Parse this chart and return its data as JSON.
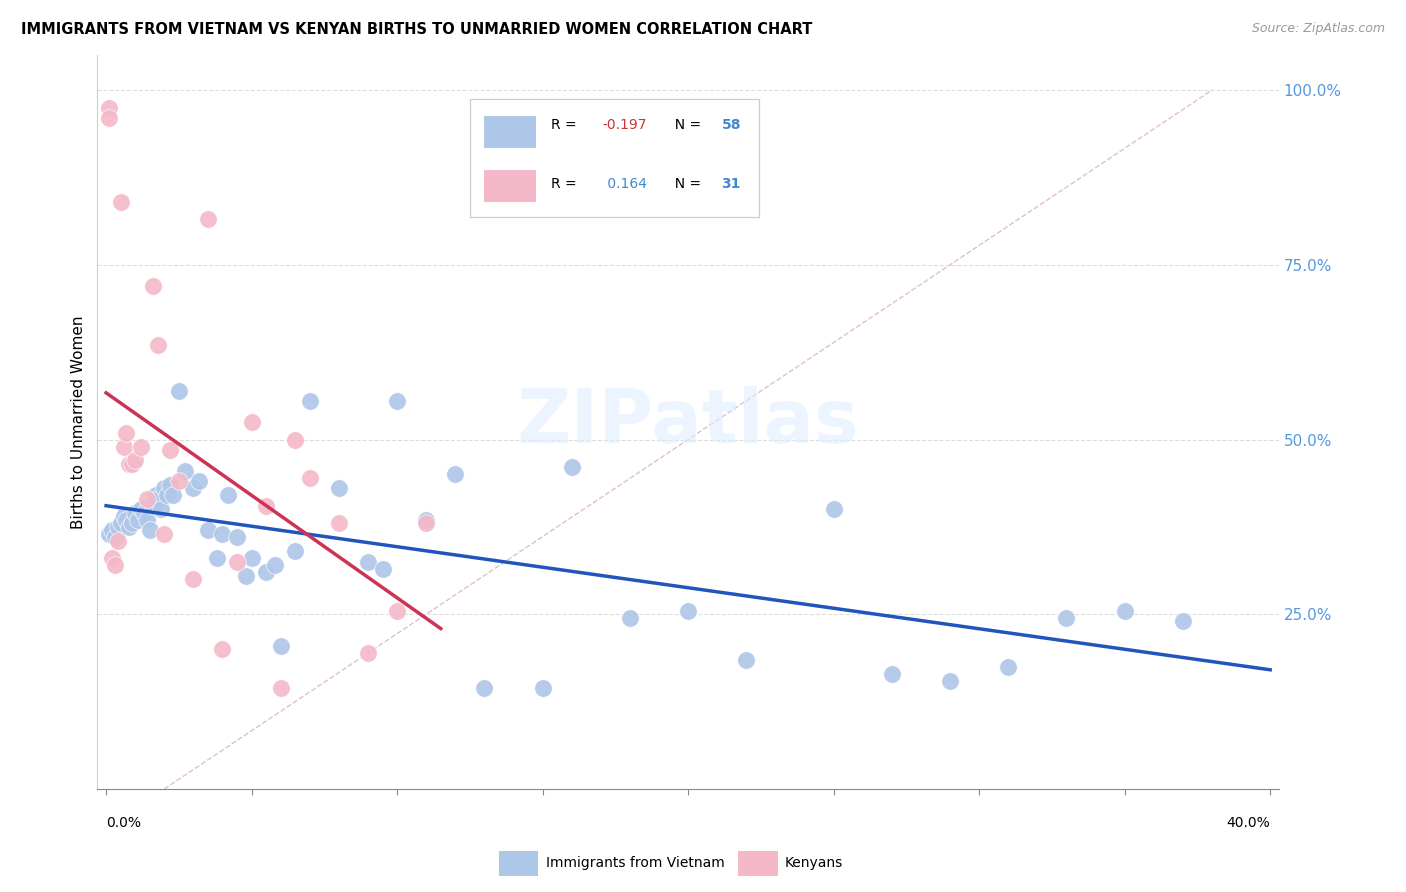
{
  "title": "IMMIGRANTS FROM VIETNAM VS KENYAN BIRTHS TO UNMARRIED WOMEN CORRELATION CHART",
  "source": "Source: ZipAtlas.com",
  "ylabel": "Births to Unmarried Women",
  "blue_color": "#aec6e8",
  "pink_color": "#f4b8c8",
  "trend_blue": "#2255bb",
  "trend_pink": "#cc3355",
  "ref_line_color": "#cccccc",
  "grid_color": "#dddddd",
  "ytick_color": "#5599dd",
  "blue_scatter_x": [
    0.001,
    0.002,
    0.003,
    0.004,
    0.005,
    0.006,
    0.007,
    0.008,
    0.009,
    0.01,
    0.011,
    0.012,
    0.013,
    0.014,
    0.015,
    0.016,
    0.017,
    0.018,
    0.019,
    0.02,
    0.021,
    0.022,
    0.023,
    0.025,
    0.027,
    0.03,
    0.032,
    0.035,
    0.038,
    0.04,
    0.042,
    0.045,
    0.048,
    0.05,
    0.055,
    0.058,
    0.06,
    0.065,
    0.07,
    0.08,
    0.09,
    0.095,
    0.1,
    0.11,
    0.12,
    0.13,
    0.15,
    0.16,
    0.18,
    0.2,
    0.22,
    0.25,
    0.27,
    0.29,
    0.31,
    0.33,
    0.35,
    0.37
  ],
  "blue_scatter_y": [
    0.365,
    0.37,
    0.36,
    0.375,
    0.38,
    0.39,
    0.385,
    0.375,
    0.38,
    0.395,
    0.385,
    0.4,
    0.395,
    0.385,
    0.37,
    0.405,
    0.42,
    0.415,
    0.4,
    0.43,
    0.42,
    0.435,
    0.42,
    0.57,
    0.455,
    0.43,
    0.44,
    0.37,
    0.33,
    0.365,
    0.42,
    0.36,
    0.305,
    0.33,
    0.31,
    0.32,
    0.205,
    0.34,
    0.555,
    0.43,
    0.325,
    0.315,
    0.555,
    0.385,
    0.45,
    0.145,
    0.145,
    0.46,
    0.245,
    0.255,
    0.185,
    0.4,
    0.165,
    0.155,
    0.175,
    0.245,
    0.255,
    0.24
  ],
  "pink_scatter_x": [
    0.001,
    0.001,
    0.002,
    0.003,
    0.004,
    0.005,
    0.006,
    0.007,
    0.008,
    0.009,
    0.01,
    0.012,
    0.014,
    0.016,
    0.018,
    0.02,
    0.022,
    0.025,
    0.03,
    0.035,
    0.04,
    0.045,
    0.05,
    0.055,
    0.06,
    0.065,
    0.07,
    0.08,
    0.09,
    0.1,
    0.11
  ],
  "pink_scatter_y": [
    0.975,
    0.96,
    0.33,
    0.32,
    0.355,
    0.84,
    0.49,
    0.51,
    0.465,
    0.465,
    0.47,
    0.49,
    0.415,
    0.72,
    0.635,
    0.365,
    0.485,
    0.44,
    0.3,
    0.815,
    0.2,
    0.325,
    0.525,
    0.405,
    0.145,
    0.5,
    0.445,
    0.38,
    0.195,
    0.255,
    0.38
  ]
}
